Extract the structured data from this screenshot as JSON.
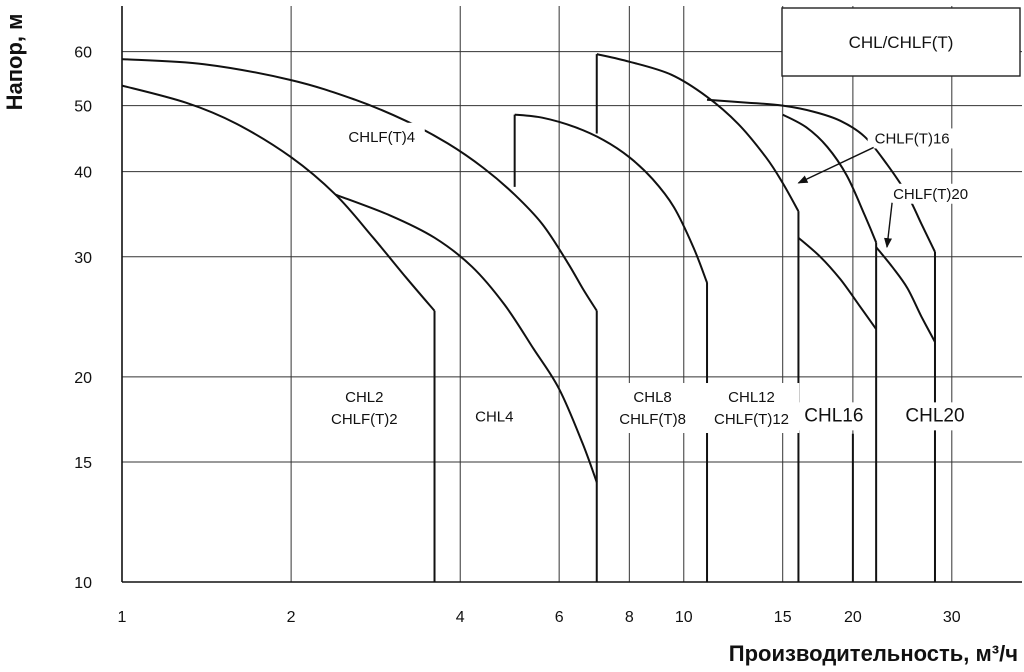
{
  "chart_data": {
    "type": "line",
    "title": "CHL/CHLF(T)",
    "xlabel": "Производительность, м³/ч",
    "ylabel": "Напор, м",
    "x_scale": "log",
    "y_scale": "log",
    "xlim": [
      1,
      40
    ],
    "ylim": [
      10,
      70
    ],
    "x_ticks": [
      1,
      2,
      4,
      6,
      8,
      10,
      15,
      20,
      30
    ],
    "y_ticks": [
      10,
      15,
      20,
      30,
      40,
      50,
      60
    ],
    "grid": true,
    "series": [
      {
        "name": "CHL2 / CHLF(T)2",
        "x": [
          1.0,
          1.3,
          1.6,
          2.0,
          2.4,
          2.8,
          3.2,
          3.6
        ],
        "y": [
          53.5,
          50.5,
          47.0,
          42.0,
          37.0,
          32.0,
          28.0,
          25.0
        ]
      },
      {
        "name": "CHL4",
        "x": [
          2.4,
          3.0,
          3.6,
          4.2,
          4.8,
          5.4,
          6.0,
          6.6,
          7.0
        ],
        "y": [
          37.0,
          34.5,
          32.0,
          29.0,
          25.5,
          22.0,
          19.2,
          16.0,
          14.0
        ]
      },
      {
        "name": "CHLF(T)4",
        "x": [
          1.0,
          1.4,
          2.0,
          2.6,
          3.2,
          3.8,
          4.4,
          5.0,
          5.6,
          6.2,
          6.6,
          7.0
        ],
        "y": [
          58.5,
          57.5,
          54.5,
          51.0,
          47.5,
          44.0,
          40.5,
          37.0,
          33.5,
          29.5,
          27.0,
          25.0
        ]
      },
      {
        "name": "CHL8 / CHLF(T)8",
        "x": [
          5.0,
          5.6,
          6.4,
          7.2,
          8.0,
          8.8,
          9.6,
          10.4,
          11.0
        ],
        "y": [
          48.5,
          48.0,
          46.5,
          44.5,
          42.0,
          39.0,
          35.5,
          31.0,
          27.5
        ]
      },
      {
        "name": "CHL12 / CHLF(T)12",
        "x": [
          7.0,
          8.0,
          9.5,
          11.0,
          12.5,
          14.0,
          15.0,
          16.0
        ],
        "y": [
          59.5,
          58.0,
          55.5,
          51.5,
          47.0,
          42.0,
          38.5,
          35.0
        ]
      },
      {
        "name": "CHL16",
        "x": [
          16.0,
          17.5,
          19.0,
          20.5,
          22.0
        ],
        "y": [
          32.0,
          30.0,
          27.8,
          25.5,
          23.5
        ]
      },
      {
        "name": "CHLF(T)16",
        "x": [
          15.0,
          16.5,
          18.0,
          19.5,
          21.0,
          22.0
        ],
        "y": [
          48.5,
          46.5,
          43.5,
          39.5,
          34.5,
          31.5
        ]
      },
      {
        "name": "CHL20",
        "x": [
          22.0,
          23.5,
          25.0,
          26.5,
          28.0
        ],
        "y": [
          31.0,
          29.0,
          27.0,
          24.5,
          22.5
        ]
      },
      {
        "name": "CHLF(T)20",
        "x": [
          11.0,
          13.0,
          15.0,
          17.0,
          19.0,
          21.0,
          23.0,
          25.0,
          26.5,
          28.0
        ],
        "y": [
          51.0,
          50.5,
          50.0,
          49.0,
          47.5,
          45.0,
          41.0,
          37.0,
          33.5,
          30.5
        ]
      }
    ],
    "cutoff_lines": [
      {
        "x": 3.6,
        "y_top": 25.0
      },
      {
        "x": 7.0,
        "y_top": 25.0
      },
      {
        "x": 11.0,
        "y_top": 27.5
      },
      {
        "x": 16.0,
        "y_top": 35.0
      },
      {
        "x": 20.0,
        "y_top": 16.5
      },
      {
        "x": 22.0,
        "y_top": 31.5
      },
      {
        "x": 28.0,
        "y_top": 30.5
      }
    ],
    "connectors": [
      {
        "x": 5.0,
        "y_from": 38.0,
        "y_to": 48.5
      },
      {
        "x": 7.0,
        "y_from": 45.5,
        "y_to": 59.5
      }
    ],
    "region_labels": [
      {
        "text": [
          "CHL2",
          "CHLF(T)2"
        ],
        "x": 2.7,
        "y": 18.0,
        "size": "normal"
      },
      {
        "text": [
          "CHL4"
        ],
        "x": 4.6,
        "y": 17.5,
        "size": "normal"
      },
      {
        "text": [
          "CHL8",
          "CHLF(T)8"
        ],
        "x": 8.8,
        "y": 18.0,
        "size": "normal"
      },
      {
        "text": [
          "CHL12",
          "CHLF(T)12"
        ],
        "x": 13.2,
        "y": 18.0,
        "size": "normal"
      },
      {
        "text": [
          "CHL16"
        ],
        "x": 18.5,
        "y": 17.5,
        "size": "big"
      },
      {
        "text": [
          "CHL20"
        ],
        "x": 28.0,
        "y": 17.5,
        "size": "big"
      },
      {
        "text": [
          "CHLF(T)4"
        ],
        "x": 2.9,
        "y": 45.0,
        "size": "normal"
      }
    ],
    "annotations": [
      {
        "text": "CHLF(T)16",
        "x": 25.5,
        "y": 44.0,
        "arrow_to": [
          16.0,
          38.5
        ]
      },
      {
        "text": "CHLF(T)20",
        "x": 27.5,
        "y": 36.5,
        "arrow_to": [
          23.0,
          31.0
        ]
      }
    ]
  }
}
